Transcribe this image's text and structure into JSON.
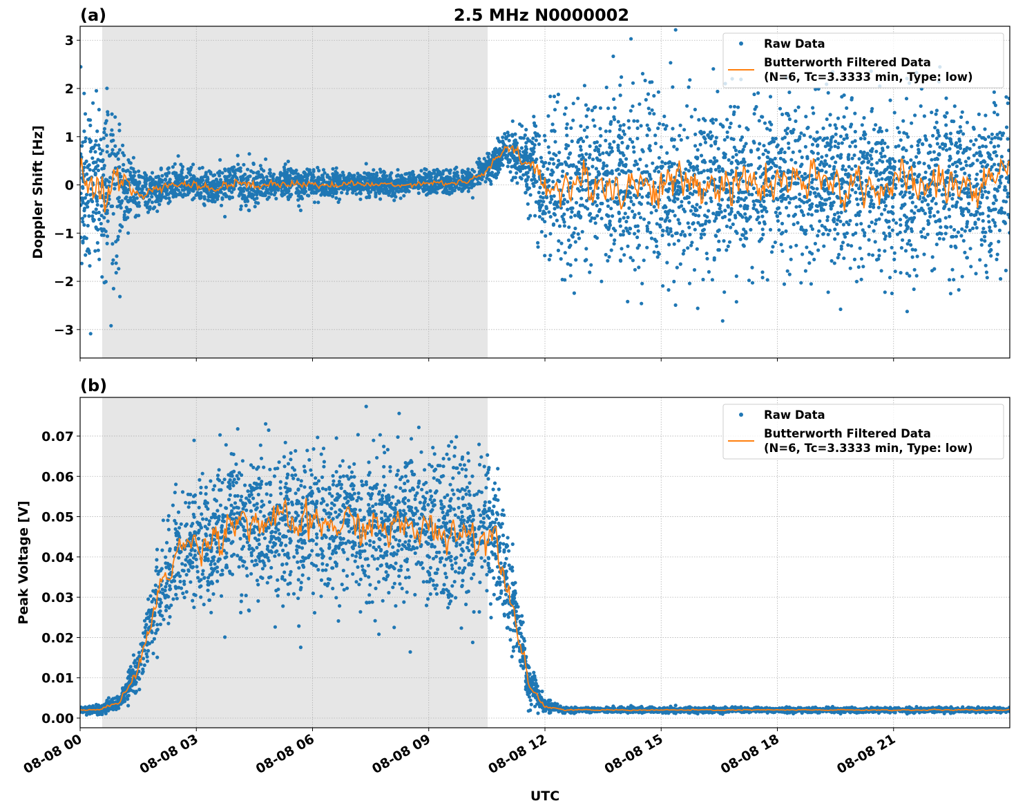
{
  "title": "2.5 MHz N0000002",
  "colors": {
    "raw": "#1f77b4",
    "filtered": "#ff7f0e",
    "shade": "#e6e6e6"
  },
  "x_axis": {
    "label": "UTC",
    "range_hours": [
      0,
      24
    ],
    "ticks": [
      {
        "hour": 0,
        "label": "08-08 00"
      },
      {
        "hour": 3,
        "label": "08-08 03"
      },
      {
        "hour": 6,
        "label": "08-08 06"
      },
      {
        "hour": 9,
        "label": "08-08 09"
      },
      {
        "hour": 12,
        "label": "08-08 12"
      },
      {
        "hour": 15,
        "label": "08-08 15"
      },
      {
        "hour": 18,
        "label": "08-08 18"
      },
      {
        "hour": 21,
        "label": "08-08 21"
      }
    ]
  },
  "legend": {
    "raw": "Raw Data",
    "filtered_line1": "Butterworth Filtered Data",
    "filtered_line2": "(N=6, Tc=3.3333 min, Type: low)",
    "placement": "top-right"
  },
  "chart_data": [
    {
      "type": "scatter",
      "panel_label": "(a)",
      "ylabel": "Doppler Shift [Hz]",
      "ylim": [
        -3.59,
        3.29
      ],
      "yticks": [
        {
          "v": -3,
          "label": "−3"
        },
        {
          "v": -2,
          "label": "−2"
        },
        {
          "v": -1,
          "label": "−1"
        },
        {
          "v": 0,
          "label": "0"
        },
        {
          "v": 1,
          "label": "1"
        },
        {
          "v": 2,
          "label": "2"
        },
        {
          "v": 3,
          "label": "3"
        }
      ],
      "grid": true,
      "shaded_interval_hours": [
        0.57,
        10.52
      ],
      "series": [
        {
          "name": "Raw Data",
          "kind": "points"
        },
        {
          "name": "Butterworth Filtered Data (N=6, Tc=3.3333 min, Type: low)",
          "kind": "line"
        }
      ],
      "trend": {
        "hours": [
          0,
          0.5,
          1,
          1.5,
          2,
          2.5,
          3,
          3.5,
          4,
          4.5,
          5,
          6,
          7,
          8,
          9,
          10,
          10.5,
          11,
          11.5,
          12,
          13,
          24
        ],
        "values": [
          0,
          0,
          -0.1,
          -0.15,
          -0.1,
          0.05,
          0,
          -0.1,
          0.1,
          -0.05,
          0.05,
          0,
          0.02,
          0,
          0.05,
          0.05,
          0.3,
          0.75,
          0.5,
          0,
          0,
          0
        ]
      },
      "spread": {
        "hours": [
          0,
          1,
          1.2,
          2,
          3,
          4,
          6,
          8,
          10,
          10.5,
          11,
          11.5,
          12,
          13,
          24
        ],
        "values": [
          0.9,
          0.85,
          0.35,
          0.18,
          0.18,
          0.22,
          0.15,
          0.12,
          0.12,
          0.15,
          0.2,
          0.35,
          0.7,
          0.85,
          0.85
        ]
      }
    },
    {
      "type": "scatter",
      "panel_label": "(b)",
      "ylabel": "Peak Voltage [V]",
      "ylim": [
        -0.0024,
        0.0796
      ],
      "yticks": [
        {
          "v": 0,
          "label": "0.00"
        },
        {
          "v": 0.01,
          "label": "0.01"
        },
        {
          "v": 0.02,
          "label": "0.02"
        },
        {
          "v": 0.03,
          "label": "0.03"
        },
        {
          "v": 0.04,
          "label": "0.04"
        },
        {
          "v": 0.05,
          "label": "0.05"
        },
        {
          "v": 0.06,
          "label": "0.06"
        },
        {
          "v": 0.07,
          "label": "0.07"
        }
      ],
      "grid": true,
      "shaded_interval_hours": [
        0.57,
        10.52
      ],
      "series": [
        {
          "name": "Raw Data",
          "kind": "points"
        },
        {
          "name": "Butterworth Filtered Data (N=6, Tc=3.3333 min, Type: low)",
          "kind": "line"
        }
      ],
      "trend": {
        "hours": [
          0,
          0.5,
          1,
          1.5,
          2,
          2.5,
          3,
          3.5,
          4,
          5,
          6,
          7,
          8,
          9,
          10,
          10.75,
          11.25,
          11.6,
          12,
          12.5,
          24
        ],
        "values": [
          0.002,
          0.002,
          0.004,
          0.012,
          0.03,
          0.042,
          0.043,
          0.045,
          0.05,
          0.048,
          0.048,
          0.048,
          0.047,
          0.047,
          0.046,
          0.045,
          0.025,
          0.008,
          0.003,
          0.002,
          0.002
        ]
      },
      "spread": {
        "hours": [
          0,
          1,
          1.5,
          2,
          3,
          4,
          10.5,
          11,
          11.5,
          12,
          12.5,
          24
        ],
        "values": [
          0.0004,
          0.0008,
          0.003,
          0.006,
          0.008,
          0.009,
          0.009,
          0.007,
          0.003,
          0.0008,
          0.0003,
          0.0003
        ]
      }
    }
  ]
}
